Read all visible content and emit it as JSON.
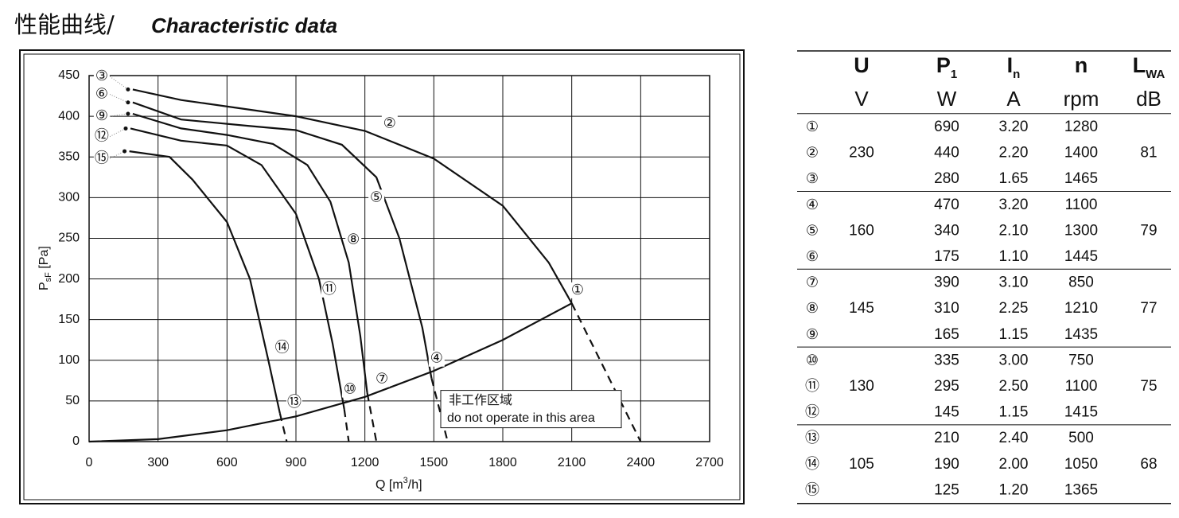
{
  "title": {
    "cn": "性能曲线/",
    "en": "Characteristic data"
  },
  "chart_data": {
    "type": "line",
    "x_label": {
      "main": "Q [m",
      "sup": "3",
      "end": "/h]"
    },
    "y_label": {
      "main": "P",
      "sub": "sF",
      "end": " [Pa]"
    },
    "xlim": [
      0,
      2700
    ],
    "xticks": [
      0,
      300,
      600,
      900,
      1200,
      1500,
      1800,
      2100,
      2400,
      2700
    ],
    "ylim": [
      0,
      450
    ],
    "yticks": [
      0,
      50,
      100,
      150,
      200,
      250,
      300,
      350,
      400,
      450
    ],
    "grid": true,
    "color": "#111111",
    "series": [
      {
        "x": [
          190,
          400,
          700,
          900,
          1200,
          1500,
          1800,
          2000,
          2100
        ],
        "values": [
          433,
          420,
          408,
          400,
          382,
          348,
          290,
          220,
          170
        ],
        "dashed": false
      },
      {
        "x": [
          2100,
          2250,
          2400
        ],
        "values": [
          170,
          85,
          0
        ],
        "dashed": true
      },
      {
        "x": [
          190,
          400,
          700,
          900,
          1100,
          1250,
          1350,
          1450,
          1490
        ],
        "values": [
          417,
          396,
          388,
          383,
          365,
          325,
          250,
          140,
          78
        ],
        "dashed": false
      },
      {
        "x": [
          1490,
          1560
        ],
        "values": [
          78,
          0
        ],
        "dashed": true
      },
      {
        "x": [
          190,
          400,
          600,
          800,
          950,
          1050,
          1130,
          1180,
          1210
        ],
        "values": [
          403,
          385,
          377,
          366,
          340,
          295,
          220,
          130,
          60
        ],
        "dashed": false
      },
      {
        "x": [
          1210,
          1250
        ],
        "values": [
          60,
          0
        ],
        "dashed": true
      },
      {
        "x": [
          180,
          400,
          600,
          750,
          900,
          1000,
          1060,
          1110
        ],
        "values": [
          385,
          370,
          364,
          340,
          280,
          200,
          120,
          40
        ],
        "dashed": false
      },
      {
        "x": [
          1110,
          1130
        ],
        "values": [
          40,
          0
        ],
        "dashed": true
      },
      {
        "x": [
          175,
          350,
          450,
          600,
          700,
          780,
          830
        ],
        "values": [
          357,
          350,
          322,
          270,
          200,
          100,
          35
        ],
        "dashed": false
      },
      {
        "x": [
          830,
          860
        ],
        "values": [
          35,
          0
        ],
        "dashed": true
      },
      {
        "x": [
          0,
          300,
          600,
          900,
          1200,
          1500,
          1800,
          2100
        ],
        "values": [
          0,
          3,
          14,
          31,
          55,
          87,
          125,
          170
        ],
        "dashed": false
      }
    ],
    "annotations": [
      {
        "text": "①",
        "x": 2125,
        "y": 186
      },
      {
        "text": "②",
        "x": 1308,
        "y": 391
      },
      {
        "text": "③",
        "x": 55,
        "y": 449,
        "leader": 0
      },
      {
        "text": "④",
        "x": 1512,
        "y": 102
      },
      {
        "text": "⑤",
        "x": 1250,
        "y": 300
      },
      {
        "text": "⑥",
        "x": 55,
        "y": 427,
        "leader": 2
      },
      {
        "text": "⑦",
        "x": 1274,
        "y": 77
      },
      {
        "text": "⑧",
        "x": 1150,
        "y": 248
      },
      {
        "text": "⑨",
        "x": 55,
        "y": 400,
        "leader": 4
      },
      {
        "text": "⑩",
        "x": 1135,
        "y": 64
      },
      {
        "text": "⑪",
        "x": 1045,
        "y": 187
      },
      {
        "text": "⑫",
        "x": 55,
        "y": 375,
        "leader": 6
      },
      {
        "text": "⑬",
        "x": 893,
        "y": 48
      },
      {
        "text": "⑭",
        "x": 840,
        "y": 115
      },
      {
        "text": "⑮",
        "x": 55,
        "y": 348,
        "leader": 8
      }
    ],
    "note": {
      "line1": "非工作区域",
      "line2": "do not operate in this area"
    }
  },
  "table": {
    "header": [
      {
        "main": "U",
        "sub": "",
        "unit": "V"
      },
      {
        "main": "P",
        "sub": "1",
        "unit": "W"
      },
      {
        "main": "I",
        "sub": "n",
        "unit": "A"
      },
      {
        "main": "n",
        "sub": "",
        "unit": "rpm"
      },
      {
        "main": "L",
        "sub": "WA",
        "unit": "dB"
      }
    ],
    "groups": [
      {
        "U": "230",
        "L": "81",
        "rows": [
          [
            "①",
            "690",
            "3.20",
            "1280"
          ],
          [
            "②",
            "440",
            "2.20",
            "1400"
          ],
          [
            "③",
            "280",
            "1.65",
            "1465"
          ]
        ]
      },
      {
        "U": "160",
        "L": "79",
        "rows": [
          [
            "④",
            "470",
            "3.20",
            "1100"
          ],
          [
            "⑤",
            "340",
            "2.10",
            "1300"
          ],
          [
            "⑥",
            "175",
            "1.10",
            "1445"
          ]
        ]
      },
      {
        "U": "145",
        "L": "77",
        "rows": [
          [
            "⑦",
            "390",
            "3.10",
            "850"
          ],
          [
            "⑧",
            "310",
            "2.25",
            "1210"
          ],
          [
            "⑨",
            "165",
            "1.15",
            "1435"
          ]
        ]
      },
      {
        "U": "130",
        "L": "75",
        "rows": [
          [
            "⑩",
            "335",
            "3.00",
            "750"
          ],
          [
            "⑪",
            "295",
            "2.50",
            "1100"
          ],
          [
            "⑫",
            "145",
            "1.15",
            "1415"
          ]
        ]
      },
      {
        "U": "105",
        "L": "68",
        "rows": [
          [
            "⑬",
            "210",
            "2.40",
            "500"
          ],
          [
            "⑭",
            "190",
            "2.00",
            "1050"
          ],
          [
            "⑮",
            "125",
            "1.20",
            "1365"
          ]
        ]
      }
    ]
  }
}
